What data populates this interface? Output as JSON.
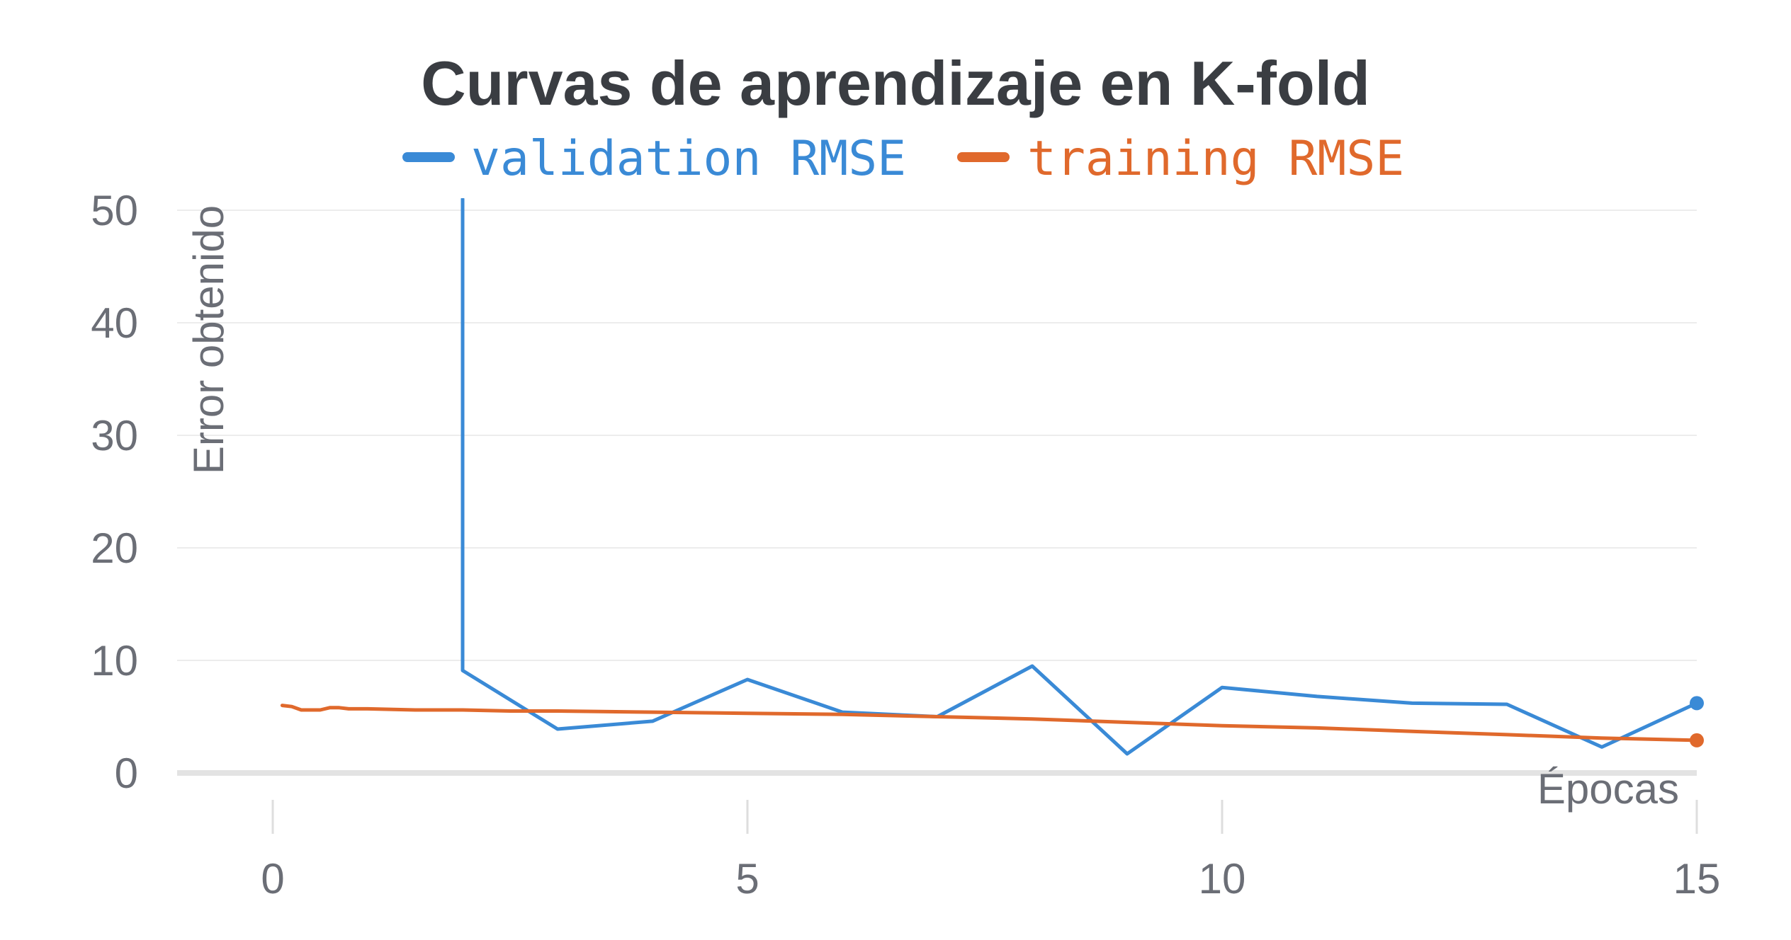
{
  "chart_data": {
    "type": "line",
    "title": "Curvas de aprendizaje en K-fold",
    "xlabel": "Épocas",
    "ylabel": "Error obtenido",
    "xlim": [
      -1,
      15
    ],
    "ylim": [
      0,
      50
    ],
    "x_ticks": [
      "0",
      "5",
      "10",
      "15"
    ],
    "y_ticks": [
      "0",
      "10",
      "20",
      "30",
      "40",
      "50"
    ],
    "grid": true,
    "legend_position": "top",
    "series": [
      {
        "name": "validation RMSE",
        "color": "#3a8ad6",
        "x": [
          2,
          2,
          3,
          4,
          5,
          6,
          7,
          8,
          9,
          10,
          11,
          12,
          13,
          14,
          15
        ],
        "y": [
          51,
          9.1,
          3.9,
          4.6,
          8.3,
          5.4,
          5.0,
          9.5,
          1.7,
          7.6,
          6.8,
          6.2,
          6.1,
          2.3,
          6.2
        ]
      },
      {
        "name": "training RMSE",
        "color": "#e0692c",
        "x": [
          0.1,
          0.2,
          0.3,
          0.4,
          0.5,
          0.6,
          0.7,
          0.8,
          1.0,
          1.5,
          2.0,
          2.5,
          3.0,
          4.0,
          5.0,
          6.0,
          7.0,
          8.0,
          9.0,
          10.0,
          11.0,
          12.0,
          13.0,
          14.0,
          15.0
        ],
        "y": [
          6.0,
          5.9,
          5.6,
          5.6,
          5.6,
          5.8,
          5.8,
          5.7,
          5.7,
          5.6,
          5.6,
          5.5,
          5.5,
          5.4,
          5.3,
          5.2,
          5.0,
          4.8,
          4.5,
          4.2,
          4.0,
          3.7,
          3.4,
          3.1,
          2.9
        ]
      }
    ]
  }
}
